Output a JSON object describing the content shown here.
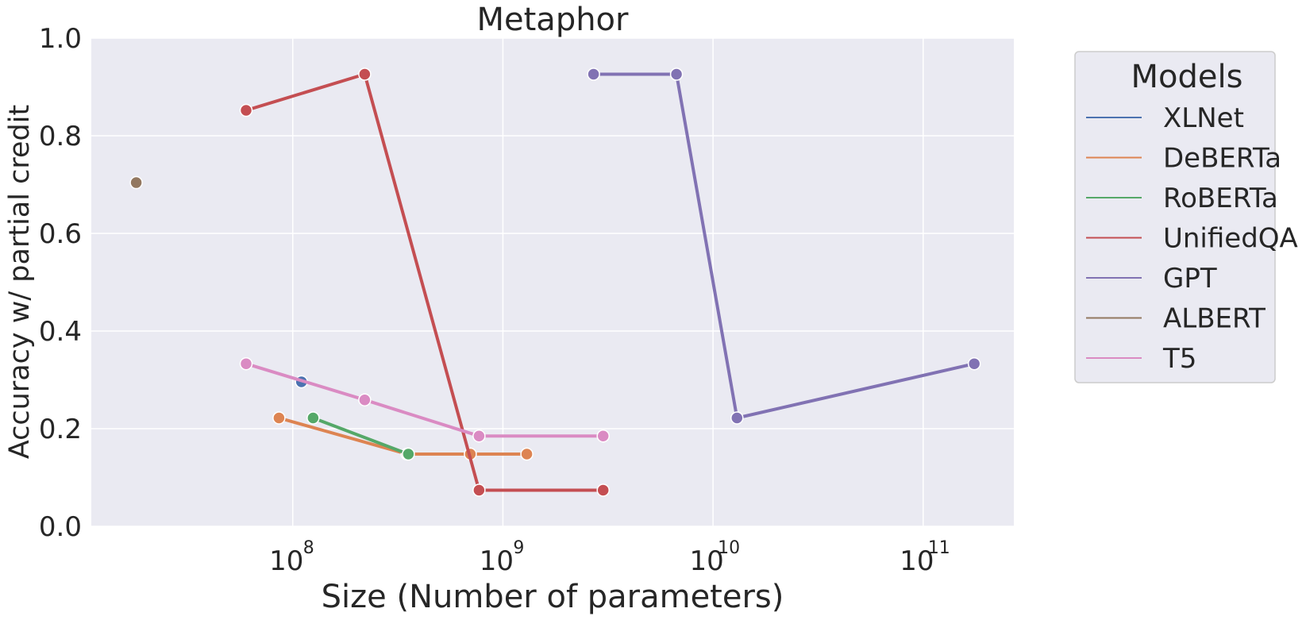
{
  "chart_data": {
    "type": "line",
    "title": "Metaphor",
    "xlabel": "Size (Number of parameters)",
    "ylabel": "Accuracy w/ partial credit",
    "x_scale": "log",
    "xlim": [
      11000000,
      270000000000
    ],
    "ylim": [
      0,
      1.0
    ],
    "x_ticks": [
      {
        "base": "10",
        "exp": "8",
        "value": 100000000
      },
      {
        "base": "10",
        "exp": "9",
        "value": 1000000000
      },
      {
        "base": "10",
        "exp": "10",
        "value": 10000000000
      },
      {
        "base": "10",
        "exp": "11",
        "value": 100000000000
      }
    ],
    "y_ticks": [
      "0.0",
      "0.2",
      "0.4",
      "0.6",
      "0.8",
      "1.0"
    ],
    "grid": true,
    "background": "#eaeaf2",
    "legend": {
      "title": "Models",
      "placement": "outside-right"
    },
    "series": [
      {
        "name": "XLNet",
        "color": "#4c72b0",
        "points": [
          [
            110000000,
            0.296
          ]
        ]
      },
      {
        "name": "DeBERTa",
        "color": "#dd8452",
        "points": [
          [
            86000000,
            0.222
          ],
          [
            350000000,
            0.148
          ],
          [
            700000000,
            0.148
          ],
          [
            1300000000,
            0.148
          ]
        ]
      },
      {
        "name": "RoBERTa",
        "color": "#55a868",
        "points": [
          [
            125000000,
            0.222
          ],
          [
            355000000,
            0.148
          ]
        ]
      },
      {
        "name": "UnifiedQA",
        "color": "#c44e52",
        "points": [
          [
            60000000,
            0.852
          ],
          [
            220000000,
            0.926
          ],
          [
            770000000,
            0.074
          ],
          [
            3000000000,
            0.074
          ]
        ]
      },
      {
        "name": "GPT",
        "color": "#8172b3",
        "points": [
          [
            2700000000,
            0.926
          ],
          [
            6700000000,
            0.926
          ],
          [
            13000000000,
            0.222
          ],
          [
            175000000000,
            0.333
          ]
        ]
      },
      {
        "name": "ALBERT",
        "color": "#937860",
        "points": [
          [
            18000000,
            0.704
          ]
        ]
      },
      {
        "name": "T5",
        "color": "#da8bc3",
        "points": [
          [
            60000000,
            0.333
          ],
          [
            220000000,
            0.259
          ],
          [
            770000000,
            0.185
          ],
          [
            3000000000,
            0.185
          ]
        ]
      }
    ]
  }
}
